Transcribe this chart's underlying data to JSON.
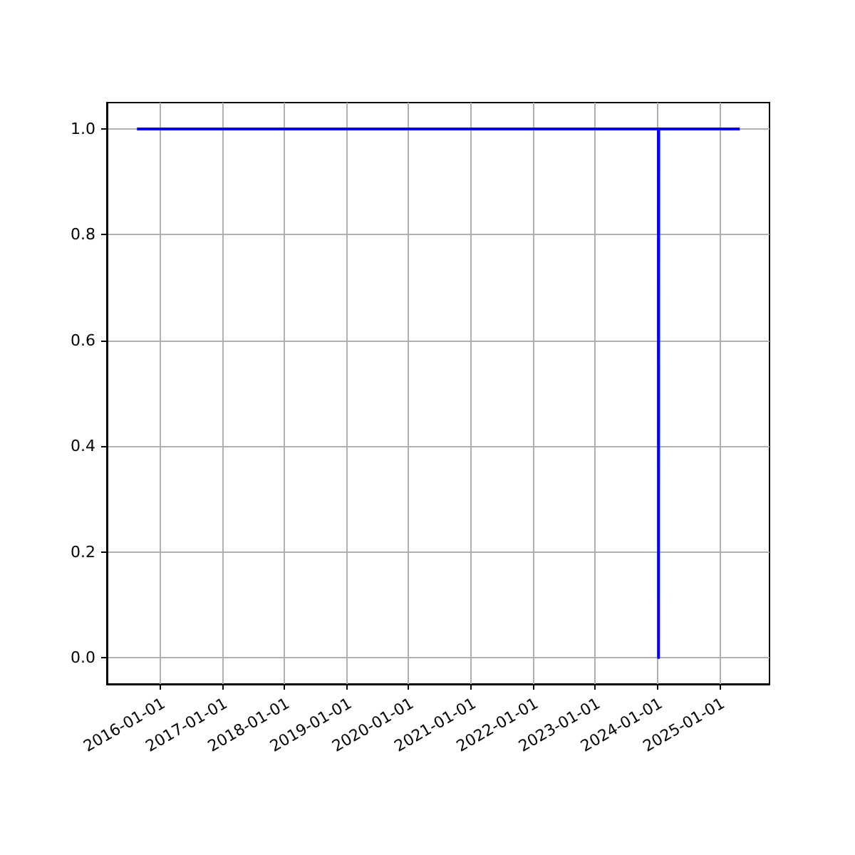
{
  "chart_data": {
    "type": "line",
    "x": [
      "2015-08-20",
      "2024-01-09",
      "2024-01-10",
      "2024-01-11",
      "2025-05-01"
    ],
    "series": [
      {
        "color": "#0000ff",
        "values": [
          1,
          1,
          0,
          1,
          1
        ]
      }
    ],
    "xlim": [
      "2015-02-24",
      "2025-10-23"
    ],
    "xticks": [
      "2016-01-01",
      "2017-01-01",
      "2018-01-01",
      "2019-01-01",
      "2020-01-01",
      "2021-01-01",
      "2022-01-01",
      "2023-01-01",
      "2024-01-01",
      "2025-01-01"
    ],
    "ylim": [
      -0.05,
      1.05
    ],
    "yticks": [
      {
        "value": 0,
        "label": "0.0"
      },
      {
        "value": 0.2,
        "label": "0.2"
      },
      {
        "value": 0.4,
        "label": "0.4"
      },
      {
        "value": 0.6,
        "label": "0.6"
      },
      {
        "value": 0.8,
        "label": "0.8"
      },
      {
        "value": 1,
        "label": "1.0"
      }
    ],
    "grid": true
  }
}
